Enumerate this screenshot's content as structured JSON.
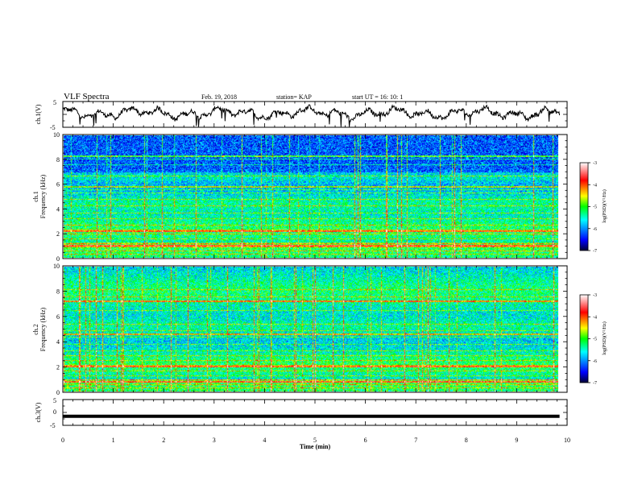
{
  "header": {
    "title": "VLF Spectra",
    "date": "Feb. 19, 2018",
    "station": "station= KAP",
    "start": "start  UT =   16: 10: 1"
  },
  "chart_data": [
    {
      "type": "line",
      "name": "ch1-voltage",
      "ylabel": "ch.1(V)",
      "ylim": [
        -5,
        5
      ],
      "y_ticks": [
        "5",
        "-5"
      ],
      "xlim": [
        0,
        10
      ],
      "description_values": {
        "baseline_V": 0.5,
        "oscillation_amplitude_V": 2.2,
        "data_end_min": 9.85
      }
    },
    {
      "type": "heatmap",
      "name": "ch1-spectrogram",
      "ylabel_channel": "ch.1",
      "ylabel": "Frequency (kHz)",
      "ylim": [
        0,
        10
      ],
      "y_ticks": [
        "0",
        "2",
        "4",
        "6",
        "8",
        "10"
      ],
      "xlim": [
        0,
        10
      ],
      "colorbar": {
        "label": "log(PSD)(V²/Hz)",
        "range": [
          -7,
          -3
        ],
        "ticks": [
          "-3",
          "-4",
          "-5",
          "-6",
          "-7"
        ],
        "colors": [
          "#ffffff",
          "#ff0000",
          "#ffff00",
          "#00ff00",
          "#00ffff",
          "#0000ff",
          "#000033"
        ]
      },
      "horizontal_lines_kHz": [
        0.3,
        0.6,
        0.9,
        1.2,
        1.6,
        2.0,
        2.3,
        2.7,
        3.2,
        3.7,
        4.3,
        4.8,
        5.3,
        5.6,
        6.7,
        7.6,
        8.1
      ],
      "strong_lines_kHz": [
        1.0,
        2.2,
        5.8,
        8.3
      ]
    },
    {
      "type": "heatmap",
      "name": "ch2-spectrogram",
      "ylabel_channel": "ch.2",
      "ylabel": "Frequency (kHz)",
      "ylim": [
        0,
        10
      ],
      "y_ticks": [
        "0",
        "2",
        "4",
        "6",
        "8",
        "10"
      ],
      "xlim": [
        0,
        10
      ],
      "colorbar": {
        "label": "log(PSD)(V²/Hz)",
        "range": [
          -7,
          -3
        ],
        "ticks": [
          "-3",
          "-4",
          "-5",
          "-6",
          "-7"
        ],
        "colors": [
          "#ffffff",
          "#ff0000",
          "#ffff00",
          "#00ff00",
          "#00ffff",
          "#0000ff",
          "#000033"
        ]
      },
      "horizontal_lines_kHz": [
        0.3,
        0.6,
        1.0,
        1.3,
        1.7,
        2.1,
        2.5,
        2.9,
        3.3,
        3.8,
        4.4,
        4.9,
        5.4,
        6.5,
        7.6,
        8.2
      ],
      "strong_lines_kHz": [
        0.8,
        2.0,
        4.6,
        7.2
      ]
    },
    {
      "type": "line",
      "name": "ch3-voltage",
      "ylabel": "ch.3(V)",
      "ylim": [
        -5,
        5
      ],
      "y_ticks": [
        "5",
        "0",
        "-5"
      ],
      "xlim": [
        0,
        10
      ],
      "constant_value_V": -1.5
    }
  ],
  "xaxis": {
    "label": "Time (min)",
    "ticks": [
      "0",
      "1",
      "2",
      "3",
      "4",
      "5",
      "6",
      "7",
      "8",
      "9",
      "10"
    ],
    "data_end_min": 9.85
  }
}
